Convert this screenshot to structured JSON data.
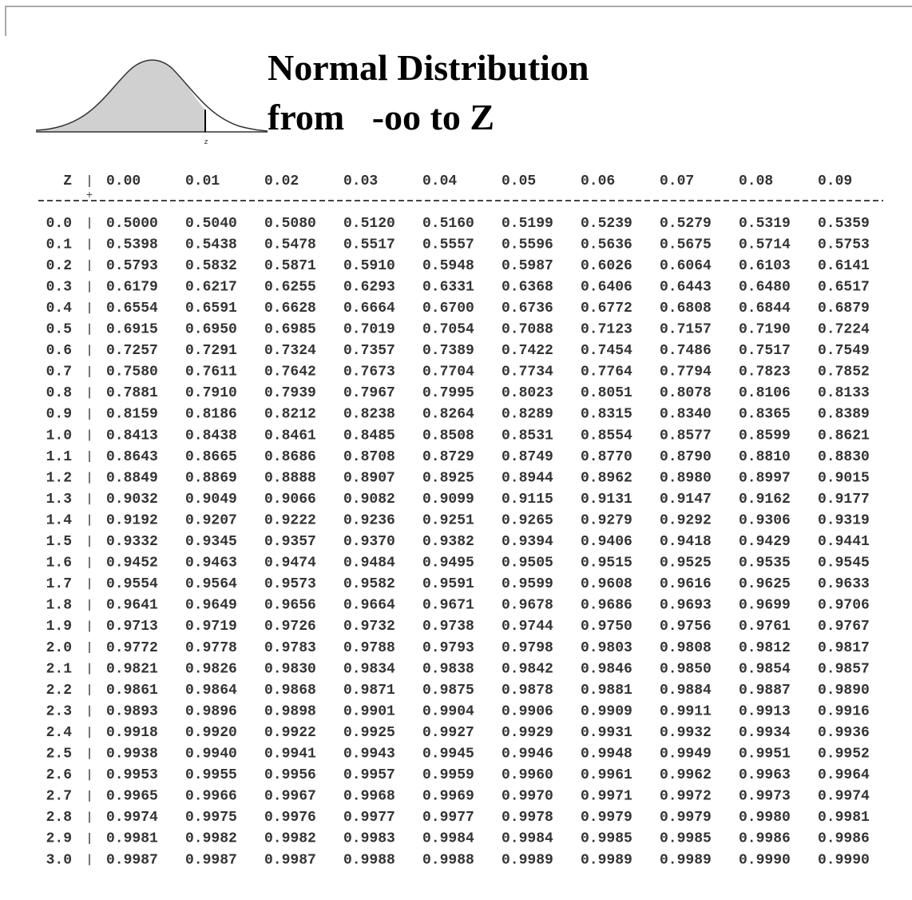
{
  "title": {
    "line1": "Normal Distribution",
    "line2": "from   -oo to Z"
  },
  "curve_label": "z",
  "table": {
    "header": {
      "z": "Z",
      "columns": [
        "0.00",
        "0.01",
        "0.02",
        "0.03",
        "0.04",
        "0.05",
        "0.06",
        "0.07",
        "0.08",
        "0.09"
      ]
    },
    "rows": [
      {
        "z": "0.0",
        "values": [
          "0.5000",
          "0.5040",
          "0.5080",
          "0.5120",
          "0.5160",
          "0.5199",
          "0.5239",
          "0.5279",
          "0.5319",
          "0.5359"
        ]
      },
      {
        "z": "0.1",
        "values": [
          "0.5398",
          "0.5438",
          "0.5478",
          "0.5517",
          "0.5557",
          "0.5596",
          "0.5636",
          "0.5675",
          "0.5714",
          "0.5753"
        ]
      },
      {
        "z": "0.2",
        "values": [
          "0.5793",
          "0.5832",
          "0.5871",
          "0.5910",
          "0.5948",
          "0.5987",
          "0.6026",
          "0.6064",
          "0.6103",
          "0.6141"
        ]
      },
      {
        "z": "0.3",
        "values": [
          "0.6179",
          "0.6217",
          "0.6255",
          "0.6293",
          "0.6331",
          "0.6368",
          "0.6406",
          "0.6443",
          "0.6480",
          "0.6517"
        ]
      },
      {
        "z": "0.4",
        "values": [
          "0.6554",
          "0.6591",
          "0.6628",
          "0.6664",
          "0.6700",
          "0.6736",
          "0.6772",
          "0.6808",
          "0.6844",
          "0.6879"
        ]
      },
      {
        "z": "0.5",
        "values": [
          "0.6915",
          "0.6950",
          "0.6985",
          "0.7019",
          "0.7054",
          "0.7088",
          "0.7123",
          "0.7157",
          "0.7190",
          "0.7224"
        ]
      },
      {
        "z": "0.6",
        "values": [
          "0.7257",
          "0.7291",
          "0.7324",
          "0.7357",
          "0.7389",
          "0.7422",
          "0.7454",
          "0.7486",
          "0.7517",
          "0.7549"
        ]
      },
      {
        "z": "0.7",
        "values": [
          "0.7580",
          "0.7611",
          "0.7642",
          "0.7673",
          "0.7704",
          "0.7734",
          "0.7764",
          "0.7794",
          "0.7823",
          "0.7852"
        ]
      },
      {
        "z": "0.8",
        "values": [
          "0.7881",
          "0.7910",
          "0.7939",
          "0.7967",
          "0.7995",
          "0.8023",
          "0.8051",
          "0.8078",
          "0.8106",
          "0.8133"
        ]
      },
      {
        "z": "0.9",
        "values": [
          "0.8159",
          "0.8186",
          "0.8212",
          "0.8238",
          "0.8264",
          "0.8289",
          "0.8315",
          "0.8340",
          "0.8365",
          "0.8389"
        ]
      },
      {
        "z": "1.0",
        "values": [
          "0.8413",
          "0.8438",
          "0.8461",
          "0.8485",
          "0.8508",
          "0.8531",
          "0.8554",
          "0.8577",
          "0.8599",
          "0.8621"
        ]
      },
      {
        "z": "1.1",
        "values": [
          "0.8643",
          "0.8665",
          "0.8686",
          "0.8708",
          "0.8729",
          "0.8749",
          "0.8770",
          "0.8790",
          "0.8810",
          "0.8830"
        ]
      },
      {
        "z": "1.2",
        "values": [
          "0.8849",
          "0.8869",
          "0.8888",
          "0.8907",
          "0.8925",
          "0.8944",
          "0.8962",
          "0.8980",
          "0.8997",
          "0.9015"
        ]
      },
      {
        "z": "1.3",
        "values": [
          "0.9032",
          "0.9049",
          "0.9066",
          "0.9082",
          "0.9099",
          "0.9115",
          "0.9131",
          "0.9147",
          "0.9162",
          "0.9177"
        ]
      },
      {
        "z": "1.4",
        "values": [
          "0.9192",
          "0.9207",
          "0.9222",
          "0.9236",
          "0.9251",
          "0.9265",
          "0.9279",
          "0.9292",
          "0.9306",
          "0.9319"
        ]
      },
      {
        "z": "1.5",
        "values": [
          "0.9332",
          "0.9345",
          "0.9357",
          "0.9370",
          "0.9382",
          "0.9394",
          "0.9406",
          "0.9418",
          "0.9429",
          "0.9441"
        ]
      },
      {
        "z": "1.6",
        "values": [
          "0.9452",
          "0.9463",
          "0.9474",
          "0.9484",
          "0.9495",
          "0.9505",
          "0.9515",
          "0.9525",
          "0.9535",
          "0.9545"
        ]
      },
      {
        "z": "1.7",
        "values": [
          "0.9554",
          "0.9564",
          "0.9573",
          "0.9582",
          "0.9591",
          "0.9599",
          "0.9608",
          "0.9616",
          "0.9625",
          "0.9633"
        ]
      },
      {
        "z": "1.8",
        "values": [
          "0.9641",
          "0.9649",
          "0.9656",
          "0.9664",
          "0.9671",
          "0.9678",
          "0.9686",
          "0.9693",
          "0.9699",
          "0.9706"
        ]
      },
      {
        "z": "1.9",
        "values": [
          "0.9713",
          "0.9719",
          "0.9726",
          "0.9732",
          "0.9738",
          "0.9744",
          "0.9750",
          "0.9756",
          "0.9761",
          "0.9767"
        ]
      },
      {
        "z": "2.0",
        "values": [
          "0.9772",
          "0.9778",
          "0.9783",
          "0.9788",
          "0.9793",
          "0.9798",
          "0.9803",
          "0.9808",
          "0.9812",
          "0.9817"
        ]
      },
      {
        "z": "2.1",
        "values": [
          "0.9821",
          "0.9826",
          "0.9830",
          "0.9834",
          "0.9838",
          "0.9842",
          "0.9846",
          "0.9850",
          "0.9854",
          "0.9857"
        ]
      },
      {
        "z": "2.2",
        "values": [
          "0.9861",
          "0.9864",
          "0.9868",
          "0.9871",
          "0.9875",
          "0.9878",
          "0.9881",
          "0.9884",
          "0.9887",
          "0.9890"
        ]
      },
      {
        "z": "2.3",
        "values": [
          "0.9893",
          "0.9896",
          "0.9898",
          "0.9901",
          "0.9904",
          "0.9906",
          "0.9909",
          "0.9911",
          "0.9913",
          "0.9916"
        ]
      },
      {
        "z": "2.4",
        "values": [
          "0.9918",
          "0.9920",
          "0.9922",
          "0.9925",
          "0.9927",
          "0.9929",
          "0.9931",
          "0.9932",
          "0.9934",
          "0.9936"
        ]
      },
      {
        "z": "2.5",
        "values": [
          "0.9938",
          "0.9940",
          "0.9941",
          "0.9943",
          "0.9945",
          "0.9946",
          "0.9948",
          "0.9949",
          "0.9951",
          "0.9952"
        ]
      },
      {
        "z": "2.6",
        "values": [
          "0.9953",
          "0.9955",
          "0.9956",
          "0.9957",
          "0.9959",
          "0.9960",
          "0.9961",
          "0.9962",
          "0.9963",
          "0.9964"
        ]
      },
      {
        "z": "2.7",
        "values": [
          "0.9965",
          "0.9966",
          "0.9967",
          "0.9968",
          "0.9969",
          "0.9970",
          "0.9971",
          "0.9972",
          "0.9973",
          "0.9974"
        ]
      },
      {
        "z": "2.8",
        "values": [
          "0.9974",
          "0.9975",
          "0.9976",
          "0.9977",
          "0.9977",
          "0.9978",
          "0.9979",
          "0.9979",
          "0.9980",
          "0.9981"
        ]
      },
      {
        "z": "2.9",
        "values": [
          "0.9981",
          "0.9982",
          "0.9982",
          "0.9983",
          "0.9984",
          "0.9984",
          "0.9985",
          "0.9985",
          "0.9986",
          "0.9986"
        ]
      },
      {
        "z": "3.0",
        "values": [
          "0.9987",
          "0.9987",
          "0.9987",
          "0.9988",
          "0.9988",
          "0.9989",
          "0.9989",
          "0.9989",
          "0.9990",
          "0.9990"
        ]
      }
    ]
  }
}
